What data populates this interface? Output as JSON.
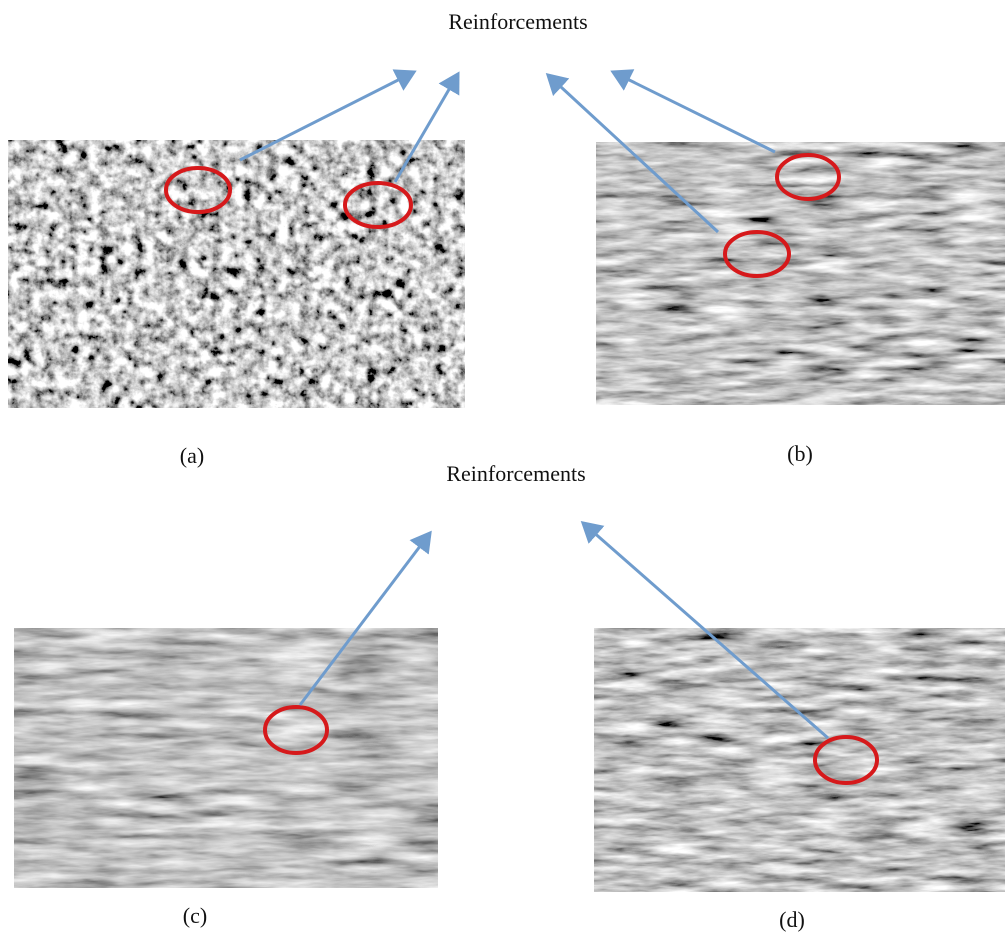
{
  "captions": [
    "Reinforcements",
    "Reinforcements"
  ],
  "panels": [
    {
      "label": "(a)"
    },
    {
      "label": "(b)"
    },
    {
      "label": "(c)"
    },
    {
      "label": "(d)"
    }
  ]
}
